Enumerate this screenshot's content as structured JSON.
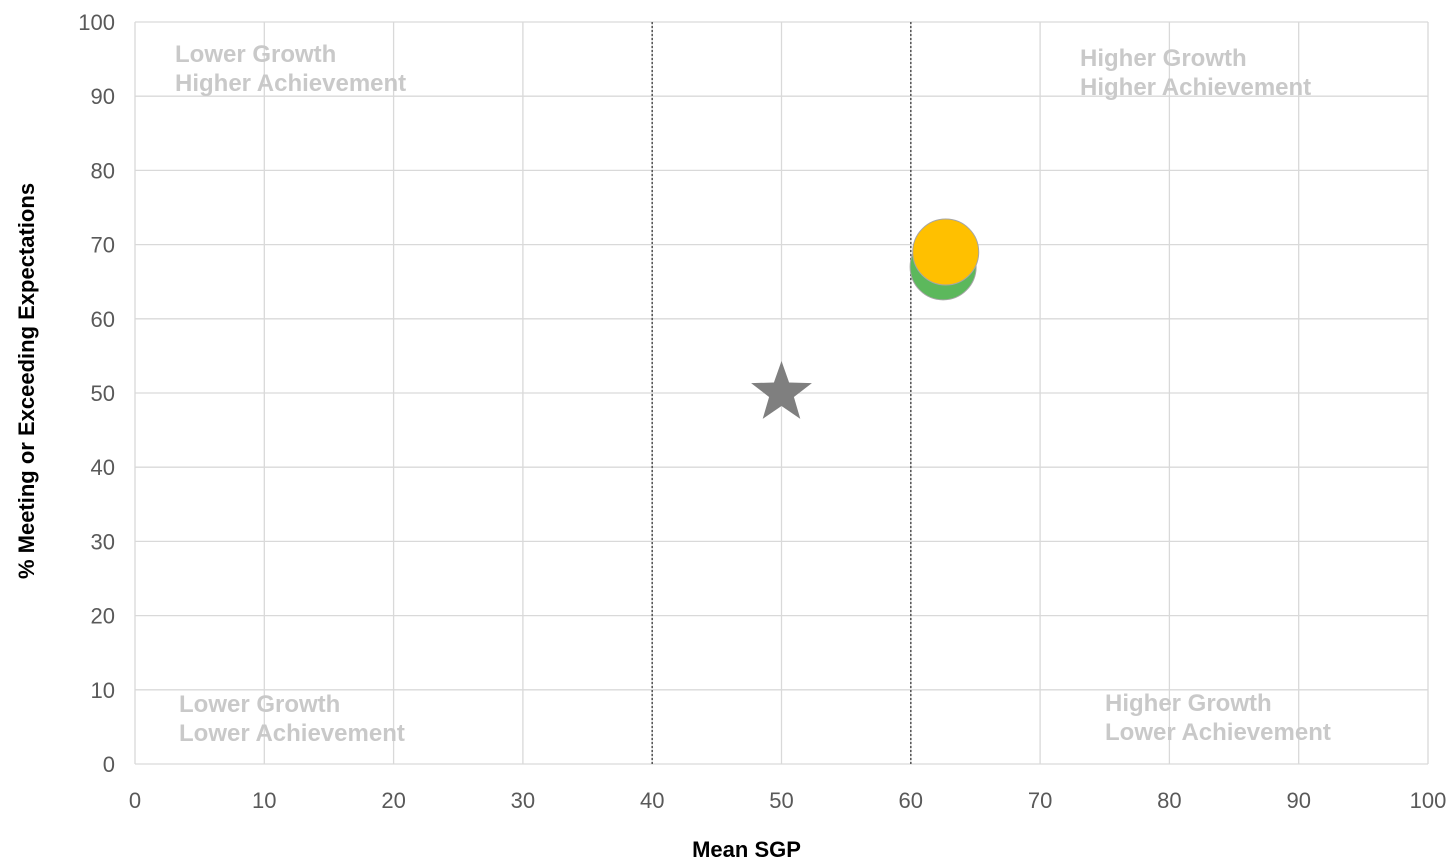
{
  "chart_data": {
    "type": "scatter",
    "xlabel": "Mean SGP",
    "ylabel": "% Meeting or Exceeding Expectations",
    "xlim": [
      0,
      100
    ],
    "ylim": [
      0,
      100
    ],
    "x_ticks": [
      0,
      10,
      20,
      30,
      40,
      50,
      60,
      70,
      80,
      90,
      100
    ],
    "y_ticks": [
      0,
      10,
      20,
      30,
      40,
      50,
      60,
      70,
      80,
      90,
      100
    ],
    "grid": true,
    "reference_lines_x": [
      40,
      60
    ],
    "quadrant_labels": [
      {
        "position": "top-left",
        "lines": [
          "Lower Growth",
          "Higher Achievement"
        ]
      },
      {
        "position": "top-right",
        "lines": [
          "Higher Growth",
          "Higher Achievement"
        ]
      },
      {
        "position": "bottom-left",
        "lines": [
          "Lower Growth",
          "Lower Achievement"
        ]
      },
      {
        "position": "bottom-right",
        "lines": [
          "Higher Growth",
          "Lower Achievement"
        ]
      }
    ],
    "points": [
      {
        "x": 50,
        "y": 50,
        "marker": "star",
        "color": "#7f7f7f"
      },
      {
        "x": 62.5,
        "y": 67,
        "marker": "circle",
        "color": "#5cb85c"
      },
      {
        "x": 62.7,
        "y": 69,
        "marker": "circle",
        "color": "#ffc000"
      }
    ]
  }
}
